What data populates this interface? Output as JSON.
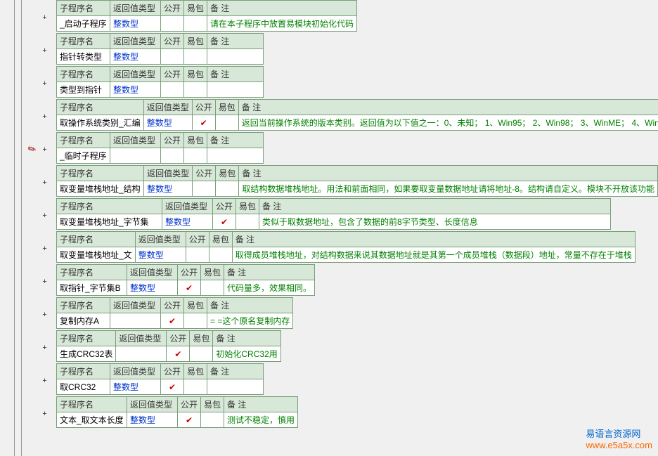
{
  "headers": {
    "name": "子程序名",
    "ret": "返回值类型",
    "pub": "公开",
    "pkg": "易包",
    "rem": "备 注"
  },
  "type_int": "整数型",
  "check": "✔",
  "entries": [
    {
      "name": "_启动子程序",
      "ret": "整数型",
      "pub": "",
      "pkg": "",
      "rem": "请在本子程序中放置易模块初始化代码",
      "nw": "c-name",
      "rw": ""
    },
    {
      "name": "指针转类型",
      "ret": "整数型",
      "pub": "",
      "pkg": "",
      "rem": "",
      "nw": "c-name",
      "rw": ""
    },
    {
      "name": "类型到指针",
      "ret": "整数型",
      "pub": "",
      "pkg": "",
      "rem": "",
      "nw": "c-name",
      "rw": ""
    },
    {
      "name": "取操作系统类别_汇编",
      "ret": "整数型",
      "pub": "✔",
      "pkg": "",
      "rem": "返回当前操作系统的版本类别。返回值为以下值之一：0、未知； 1、Win95； 2、Win98； 3、WinME； 4、Win",
      "nw": "c-name-w",
      "rw": "long"
    },
    {
      "name": "_临时子程序",
      "ret": "",
      "pub": "",
      "pkg": "",
      "rem": "",
      "nw": "c-name",
      "rw": ""
    },
    {
      "name": "取变量堆栈地址_结构",
      "ret": "整数型",
      "pub": "",
      "pkg": "",
      "rem": "取结构数据堆栈地址。用法和前面相同，如果要取变量数据地址请将地址-8。结构请自定义。模块不开放该功能",
      "nw": "c-name-w",
      "rw": "long"
    },
    {
      "name": "取变量堆栈地址_字节集",
      "ret": "整数型",
      "pub": "✔",
      "pkg": "",
      "rem": "类似于取数据地址，包含了数据的前8字节类型、长度信息",
      "nw": "c-name-xw",
      "rw": "med"
    },
    {
      "name": "取变量堆栈地址_文",
      "ret": "整数型",
      "pub": "",
      "pkg": "",
      "rem": "取得成员堆栈地址，对结构数据来说其数据地址就是其第一个成员堆栈（数据段）地址，常量不存在于堆栈",
      "nw": "c-name-xxw",
      "rw": "long"
    },
    {
      "name": "取指针_字节集B",
      "ret": "整数型",
      "pub": "✔",
      "pkg": "",
      "rem": "代码量多，效果相同。",
      "nw": "c-name-xxw",
      "rw": ""
    },
    {
      "name": "复制内存A",
      "ret": "",
      "pub": "✔",
      "pkg": "",
      "rem": "= =这个原名复制内存",
      "nw": "c-name",
      "rw": ""
    },
    {
      "name": "生成CRC32表",
      "ret": "",
      "pub": "✔",
      "pkg": "",
      "rem": "初始化CRC32用",
      "nw": "c-name",
      "rw": ""
    },
    {
      "name": "取CRC32",
      "ret": "整数型",
      "pub": "✔",
      "pkg": "",
      "rem": "",
      "nw": "c-name",
      "rw": ""
    },
    {
      "name": "文本_取文本长度",
      "ret": "整数型",
      "pub": "✔",
      "pkg": "",
      "rem": "测试不稳定，慎用",
      "nw": "c-name-xxw",
      "rw": ""
    }
  ],
  "watermark": {
    "t1": "易语言资源网",
    "t2": "www.e5a5x.com"
  }
}
